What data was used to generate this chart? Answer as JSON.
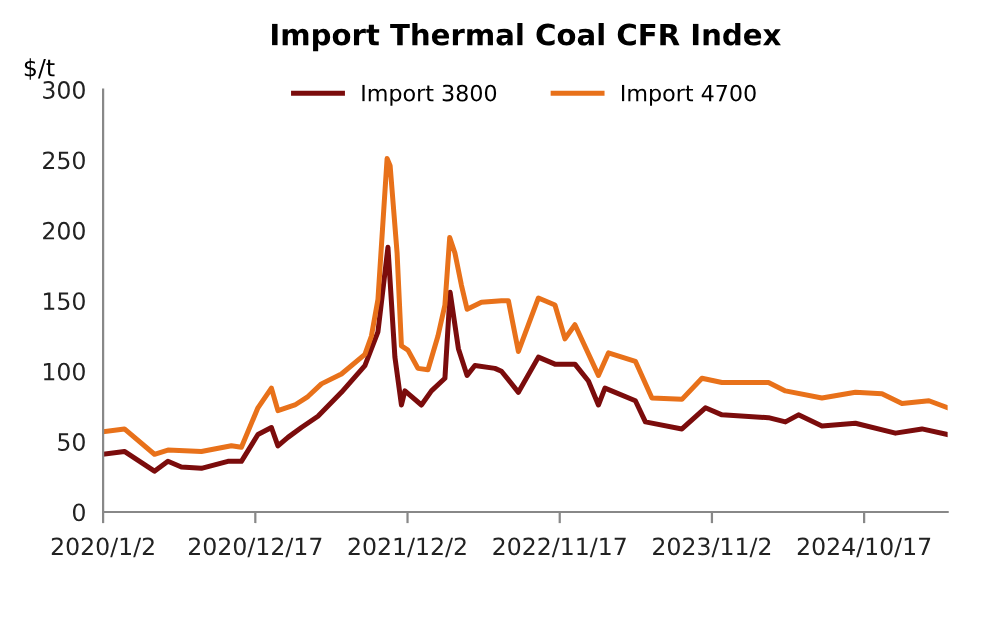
{
  "chart_data": {
    "type": "line",
    "title": "Import Thermal Coal CFR Index",
    "ylabel": "$/t",
    "xlim": [
      "2020-01-02",
      "2025-04-27"
    ],
    "ylim": [
      0,
      300
    ],
    "yticks": [
      0,
      50,
      100,
      150,
      200,
      250,
      300
    ],
    "xticks": [
      {
        "value": "2020-01-02",
        "label": "2020/1/2"
      },
      {
        "value": "2020-12-17",
        "label": "2020/12/17"
      },
      {
        "value": "2021-12-02",
        "label": "2021/12/2"
      },
      {
        "value": "2022-11-17",
        "label": "2022/11/17"
      },
      {
        "value": "2023-11-02",
        "label": "2023/11/2"
      },
      {
        "value": "2024-10-17",
        "label": "2024/10/17"
      }
    ],
    "grid": false,
    "legend": "top",
    "marker": "none",
    "line_style": "solid",
    "series": [
      {
        "name": "Import 3800",
        "color": "#7b0c0c",
        "x": [
          "2020-01-02",
          "2020-02-20",
          "2020-04-29",
          "2020-05-30",
          "2020-06-30",
          "2020-08-15",
          "2020-10-15",
          "2020-11-15",
          "2020-12-23",
          "2021-01-23",
          "2021-02-07",
          "2021-03-02",
          "2021-04-02",
          "2021-05-10",
          "2021-07-03",
          "2021-08-26",
          "2021-09-25",
          "2021-10-18",
          "2021-11-03",
          "2021-11-18",
          "2021-11-26",
          "2022-01-03",
          "2022-01-26",
          "2022-02-26",
          "2022-03-10",
          "2022-03-29",
          "2022-04-18",
          "2022-05-06",
          "2022-06-21",
          "2022-07-06",
          "2022-08-14",
          "2022-09-29",
          "2022-11-06",
          "2022-12-22",
          "2023-01-22",
          "2023-02-14",
          "2023-03-01",
          "2023-05-10",
          "2023-06-02",
          "2023-08-25",
          "2023-10-18",
          "2023-11-25",
          "2024-03-11",
          "2024-04-19",
          "2024-05-19",
          "2024-07-12",
          "2024-09-27",
          "2024-12-28",
          "2025-02-27",
          "2025-04-27"
        ],
        "values": [
          41,
          43,
          29,
          36,
          32,
          31,
          36,
          36,
          55,
          60,
          47,
          53,
          60,
          68,
          85,
          104,
          128,
          188,
          110,
          76,
          86,
          76,
          86,
          95,
          156,
          116,
          97,
          104,
          102,
          100,
          85,
          110,
          105,
          105,
          93,
          76,
          88,
          79,
          64,
          59,
          74,
          69,
          67,
          64,
          69,
          61,
          63,
          56,
          59,
          55
        ]
      },
      {
        "name": "Import 4700",
        "color": "#e8711a",
        "x": [
          "2020-01-02",
          "2020-02-20",
          "2020-04-29",
          "2020-05-30",
          "2020-08-15",
          "2020-10-23",
          "2020-11-15",
          "2020-12-23",
          "2021-01-23",
          "2021-02-07",
          "2021-03-18",
          "2021-04-17",
          "2021-05-18",
          "2021-07-03",
          "2021-08-26",
          "2021-09-10",
          "2021-09-25",
          "2021-10-16",
          "2021-10-23",
          "2021-11-08",
          "2021-11-18",
          "2021-12-03",
          "2021-12-26",
          "2022-01-18",
          "2022-02-10",
          "2022-02-26",
          "2022-03-09",
          "2022-03-21",
          "2022-04-05",
          "2022-04-18",
          "2022-05-21",
          "2022-07-06",
          "2022-07-22",
          "2022-08-14",
          "2022-09-06",
          "2022-09-29",
          "2022-11-06",
          "2022-11-29",
          "2022-12-22",
          "2023-02-14",
          "2023-03-09",
          "2023-05-10",
          "2023-06-17",
          "2023-08-25",
          "2023-10-10",
          "2023-11-25",
          "2024-03-11",
          "2024-04-19",
          "2024-07-12",
          "2024-09-27",
          "2024-11-27",
          "2025-01-12",
          "2025-03-15",
          "2025-04-27"
        ],
        "values": [
          57,
          59,
          41,
          44,
          43,
          47,
          46,
          74,
          88,
          72,
          76,
          82,
          91,
          98,
          112,
          125,
          151,
          251,
          246,
          184,
          118,
          115,
          102,
          101,
          125,
          147,
          195,
          184,
          161,
          144,
          149,
          150,
          150,
          114,
          133,
          152,
          147,
          123,
          133,
          97,
          113,
          107,
          81,
          80,
          95,
          92,
          92,
          86,
          81,
          85,
          84,
          77,
          79,
          74
        ]
      }
    ]
  }
}
